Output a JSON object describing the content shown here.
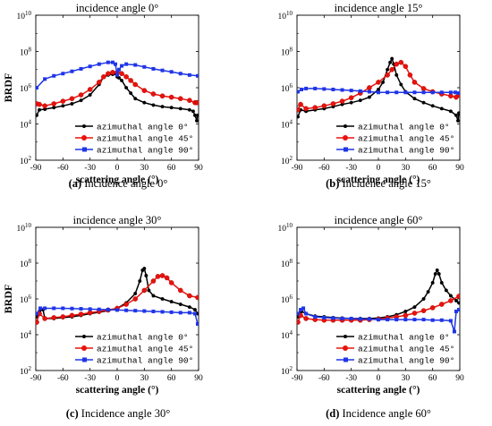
{
  "chart_data": [
    {
      "type": "line",
      "title": "incidence angle 0°",
      "caption_label": "(a)",
      "caption_text": " Incidence angle 0°",
      "xlabel": "scattering angle (°)",
      "ylabel": "BRDF",
      "xlim": [
        -90,
        90
      ],
      "xticks": [
        "-90",
        "-60",
        "-30",
        "0",
        "30",
        "60",
        "90"
      ],
      "yscale": "log",
      "ylim_exp": [
        2,
        10
      ],
      "yticks": [
        {
          "base": "10",
          "exp": "2"
        },
        {
          "base": "10",
          "exp": "4"
        },
        {
          "base": "10",
          "exp": "6"
        },
        {
          "base": "10",
          "exp": "8"
        },
        {
          "base": "10",
          "exp": "10"
        }
      ],
      "legend_position": "bottom-center",
      "grid": false,
      "series": [
        {
          "name": "azimuthal angle 0°",
          "color": "#000000",
          "marker": "circle",
          "x": [
            -89,
            -86,
            -80,
            -70,
            -60,
            -50,
            -40,
            -30,
            -20,
            -15,
            -10,
            -5,
            -2,
            0,
            2,
            5,
            10,
            15,
            20,
            30,
            40,
            50,
            60,
            70,
            80,
            84,
            86,
            88,
            89
          ],
          "y": [
            30000,
            60000,
            65000,
            80000,
            100000,
            130000,
            200000,
            400000,
            1500000,
            4000000,
            5000000,
            5500000,
            6000000,
            4000000,
            3500000,
            2500000,
            1000000,
            500000,
            250000,
            150000,
            110000,
            90000,
            80000,
            70000,
            60000,
            50000,
            30000,
            15000,
            30000
          ]
        },
        {
          "name": "azimuthal angle 45°",
          "color": "#e8120c",
          "marker": "circle",
          "x": [
            -89,
            -86,
            -80,
            -70,
            -60,
            -50,
            -40,
            -30,
            -20,
            -15,
            -10,
            -5,
            0,
            5,
            10,
            15,
            20,
            30,
            40,
            50,
            60,
            70,
            80,
            86,
            88,
            89
          ],
          "y": [
            130000,
            120000,
            100000,
            130000,
            180000,
            250000,
            400000,
            800000,
            2000000,
            4000000,
            6000000,
            7000000,
            7000000,
            6000000,
            4000000,
            2500000,
            1500000,
            700000,
            450000,
            350000,
            300000,
            250000,
            200000,
            150000,
            150000,
            150000
          ]
        },
        {
          "name": "azimuthal angle 90°",
          "color": "#1f35e8",
          "marker": "square",
          "x": [
            -89,
            -80,
            -70,
            -60,
            -50,
            -40,
            -30,
            -20,
            -10,
            -5,
            -2,
            0,
            2,
            5,
            10,
            20,
            30,
            40,
            50,
            60,
            70,
            80,
            89
          ],
          "y": [
            1000000,
            3000000,
            4500000,
            6000000,
            8000000,
            11000000,
            15000000,
            20000000,
            25000000,
            25000000,
            20000000,
            5000000,
            10000000,
            16000000,
            20000000,
            18000000,
            14000000,
            11000000,
            9000000,
            7500000,
            6000000,
            5000000,
            4500000
          ]
        }
      ]
    },
    {
      "type": "line",
      "title": "incidence angle 15°",
      "caption_label": "(b)",
      "caption_text": " Incidence angle 15°",
      "xlabel": "scattering angle (°)",
      "ylabel": "",
      "xlim": [
        -90,
        90
      ],
      "xticks": [
        "-90",
        "-60",
        "-30",
        "0",
        "30",
        "60",
        "90"
      ],
      "yscale": "log",
      "ylim_exp": [
        2,
        10
      ],
      "yticks": [
        {
          "base": "10",
          "exp": "2"
        },
        {
          "base": "10",
          "exp": "4"
        },
        {
          "base": "10",
          "exp": "6"
        },
        {
          "base": "10",
          "exp": "8"
        },
        {
          "base": "10",
          "exp": "10"
        }
      ],
      "legend_position": "bottom-center",
      "grid": false,
      "series": [
        {
          "name": "azimuthal angle 0°",
          "color": "#000000",
          "marker": "circle",
          "x": [
            -89,
            -86,
            -80,
            -70,
            -60,
            -50,
            -40,
            -30,
            -20,
            -10,
            0,
            5,
            10,
            13,
            15,
            17,
            20,
            25,
            30,
            40,
            50,
            60,
            70,
            80,
            86,
            88,
            89
          ],
          "y": [
            25000,
            60000,
            50000,
            60000,
            70000,
            90000,
            120000,
            150000,
            200000,
            300000,
            800000,
            2000000,
            10000000,
            25000000,
            40000000,
            20000000,
            5000000,
            1500000,
            600000,
            250000,
            150000,
            100000,
            70000,
            50000,
            30000,
            15000,
            40000
          ]
        },
        {
          "name": "azimuthal angle 45°",
          "color": "#e8120c",
          "marker": "circle",
          "x": [
            -89,
            -86,
            -80,
            -70,
            -60,
            -50,
            -40,
            -30,
            -20,
            -10,
            0,
            10,
            15,
            20,
            25,
            30,
            35,
            40,
            50,
            60,
            70,
            80,
            86,
            89
          ],
          "y": [
            60000,
            120000,
            70000,
            80000,
            100000,
            130000,
            180000,
            280000,
            500000,
            1000000,
            2000000,
            5000000,
            10000000,
            20000000,
            25000000,
            15000000,
            5000000,
            2000000,
            900000,
            600000,
            450000,
            350000,
            300000,
            400000
          ]
        },
        {
          "name": "azimuthal angle 90°",
          "color": "#1f35e8",
          "marker": "square",
          "x": [
            -89,
            -85,
            -80,
            -70,
            -60,
            -50,
            -40,
            -30,
            -20,
            -10,
            0,
            10,
            20,
            30,
            40,
            50,
            60,
            70,
            80,
            85,
            89
          ],
          "y": [
            600000,
            800000,
            900000,
            900000,
            850000,
            800000,
            750000,
            700000,
            650000,
            600000,
            550000,
            550000,
            550000,
            550000,
            550000,
            550000,
            550000,
            550000,
            550000,
            550000,
            500000
          ]
        }
      ]
    },
    {
      "type": "line",
      "title": "incidence angle 30°",
      "caption_label": "(c)",
      "caption_text": " Incidence angle 30°",
      "xlabel": "scattering angle (°)",
      "ylabel": "BRDF",
      "xlim": [
        -90,
        90
      ],
      "xticks": [
        "-90",
        "-60",
        "-30",
        "0",
        "30",
        "60",
        "90"
      ],
      "yscale": "log",
      "ylim_exp": [
        2,
        10
      ],
      "yticks": [
        {
          "base": "10",
          "exp": "2"
        },
        {
          "base": "10",
          "exp": "4"
        },
        {
          "base": "10",
          "exp": "6"
        },
        {
          "base": "10",
          "exp": "8"
        },
        {
          "base": "10",
          "exp": "10"
        }
      ],
      "legend_position": "bottom-center",
      "grid": false,
      "series": [
        {
          "name": "azimuthal angle 0°",
          "color": "#000000",
          "marker": "circle",
          "x": [
            -89,
            -86,
            -82,
            -80,
            -70,
            -60,
            -50,
            -40,
            -30,
            -20,
            -10,
            0,
            10,
            20,
            25,
            28,
            30,
            32,
            35,
            40,
            50,
            60,
            70,
            80,
            86,
            89
          ],
          "y": [
            100000,
            200000,
            250000,
            80000,
            80000,
            90000,
            100000,
            120000,
            150000,
            180000,
            220000,
            300000,
            600000,
            2000000,
            10000000,
            40000000,
            50000000,
            20000000,
            3000000,
            1500000,
            1000000,
            700000,
            500000,
            350000,
            250000,
            150000
          ]
        },
        {
          "name": "azimuthal angle 45°",
          "color": "#e8120c",
          "marker": "circle",
          "x": [
            -89,
            -86,
            -80,
            -70,
            -60,
            -50,
            -40,
            -30,
            -20,
            -10,
            0,
            10,
            20,
            30,
            40,
            45,
            50,
            55,
            60,
            70,
            80,
            89
          ],
          "y": [
            50000,
            150000,
            80000,
            90000,
            100000,
            120000,
            140000,
            170000,
            200000,
            240000,
            300000,
            500000,
            1000000,
            3000000,
            10000000,
            18000000,
            20000000,
            15000000,
            8000000,
            3000000,
            1500000,
            1200000
          ]
        },
        {
          "name": "azimuthal angle 90°",
          "color": "#1f35e8",
          "marker": "square",
          "x": [
            -89,
            -85,
            -80,
            -70,
            -60,
            -50,
            -40,
            -30,
            -20,
            -10,
            0,
            10,
            20,
            30,
            40,
            50,
            60,
            70,
            80,
            86,
            89
          ],
          "y": [
            150000,
            300000,
            300000,
            300000,
            300000,
            290000,
            280000,
            270000,
            260000,
            250000,
            240000,
            230000,
            220000,
            210000,
            200000,
            190000,
            180000,
            170000,
            170000,
            150000,
            40000
          ]
        }
      ]
    },
    {
      "type": "line",
      "title": "incidence angle 60°",
      "caption_label": "(d)",
      "caption_text": " Incidence angle 60°",
      "xlabel": "scattering angle (°)",
      "ylabel": "",
      "xlim": [
        -90,
        90
      ],
      "xticks": [
        "-90",
        "-60",
        "-30",
        "0",
        "30",
        "60",
        "90"
      ],
      "yscale": "log",
      "ylim_exp": [
        2,
        10
      ],
      "yticks": [
        {
          "base": "10",
          "exp": "2"
        },
        {
          "base": "10",
          "exp": "4"
        },
        {
          "base": "10",
          "exp": "6"
        },
        {
          "base": "10",
          "exp": "8"
        },
        {
          "base": "10",
          "exp": "10"
        }
      ],
      "legend_position": "bottom-center",
      "grid": false,
      "series": [
        {
          "name": "azimuthal angle 0°",
          "color": "#000000",
          "marker": "circle",
          "x": [
            -89,
            -85,
            -80,
            -70,
            -60,
            -50,
            -40,
            -30,
            -20,
            -10,
            0,
            10,
            20,
            30,
            40,
            50,
            55,
            60,
            63,
            65,
            67,
            70,
            75,
            80,
            86,
            89
          ],
          "y": [
            100000,
            200000,
            150000,
            110000,
            100000,
            90000,
            85000,
            80000,
            80000,
            80000,
            85000,
            100000,
            130000,
            200000,
            350000,
            1000000,
            2500000,
            8000000,
            25000000,
            40000000,
            25000000,
            8000000,
            3000000,
            1500000,
            800000,
            600000
          ]
        },
        {
          "name": "azimuthal angle 45°",
          "color": "#e8120c",
          "marker": "circle",
          "x": [
            -89,
            -86,
            -80,
            -70,
            -60,
            -50,
            -40,
            -30,
            -20,
            -10,
            0,
            10,
            20,
            30,
            40,
            50,
            60,
            70,
            80,
            89
          ],
          "y": [
            50000,
            120000,
            80000,
            70000,
            65000,
            65000,
            65000,
            65000,
            65000,
            70000,
            75000,
            85000,
            100000,
            120000,
            160000,
            220000,
            320000,
            500000,
            800000,
            1400000
          ]
        },
        {
          "name": "azimuthal angle 90°",
          "color": "#1f35e8",
          "marker": "square",
          "x": [
            -89,
            -86,
            -83,
            -80,
            -70,
            -60,
            -50,
            -40,
            -30,
            -20,
            -10,
            0,
            10,
            20,
            30,
            40,
            50,
            60,
            70,
            80,
            84,
            86,
            89
          ],
          "y": [
            150000,
            250000,
            300000,
            150000,
            100000,
            90000,
            85000,
            80000,
            80000,
            75000,
            75000,
            70000,
            70000,
            70000,
            70000,
            70000,
            70000,
            65000,
            65000,
            60000,
            15000,
            200000,
            250000
          ]
        }
      ]
    }
  ]
}
